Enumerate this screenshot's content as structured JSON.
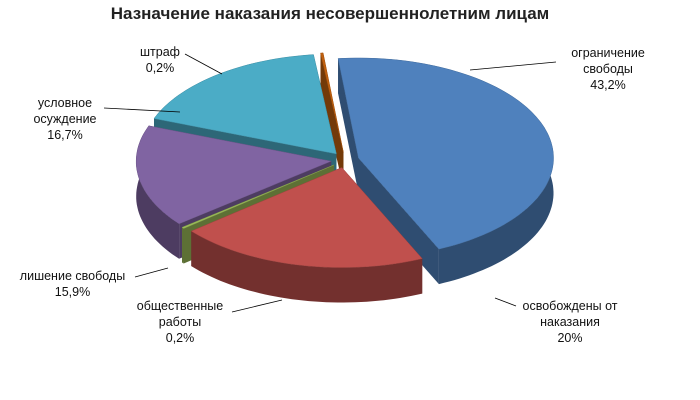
{
  "chart_data": {
    "type": "pie",
    "title": "Назначение наказания несовершеннолетним лицам",
    "categories": [
      "ограничение свободы",
      "освобождены от наказания",
      "общественные работы",
      "лишение свободы",
      "условное осуждение",
      "штраф"
    ],
    "values": [
      43.2,
      20,
      0.2,
      15.9,
      16.7,
      0.2
    ],
    "value_labels": [
      "43,2%",
      "20%",
      "0,2%",
      "15,9%",
      "16,7%",
      "0,2%"
    ],
    "colors": [
      "#4f81bd",
      "#c0504d",
      "#9bbb59",
      "#8064a2",
      "#4bacc6",
      "#c0600f"
    ]
  }
}
